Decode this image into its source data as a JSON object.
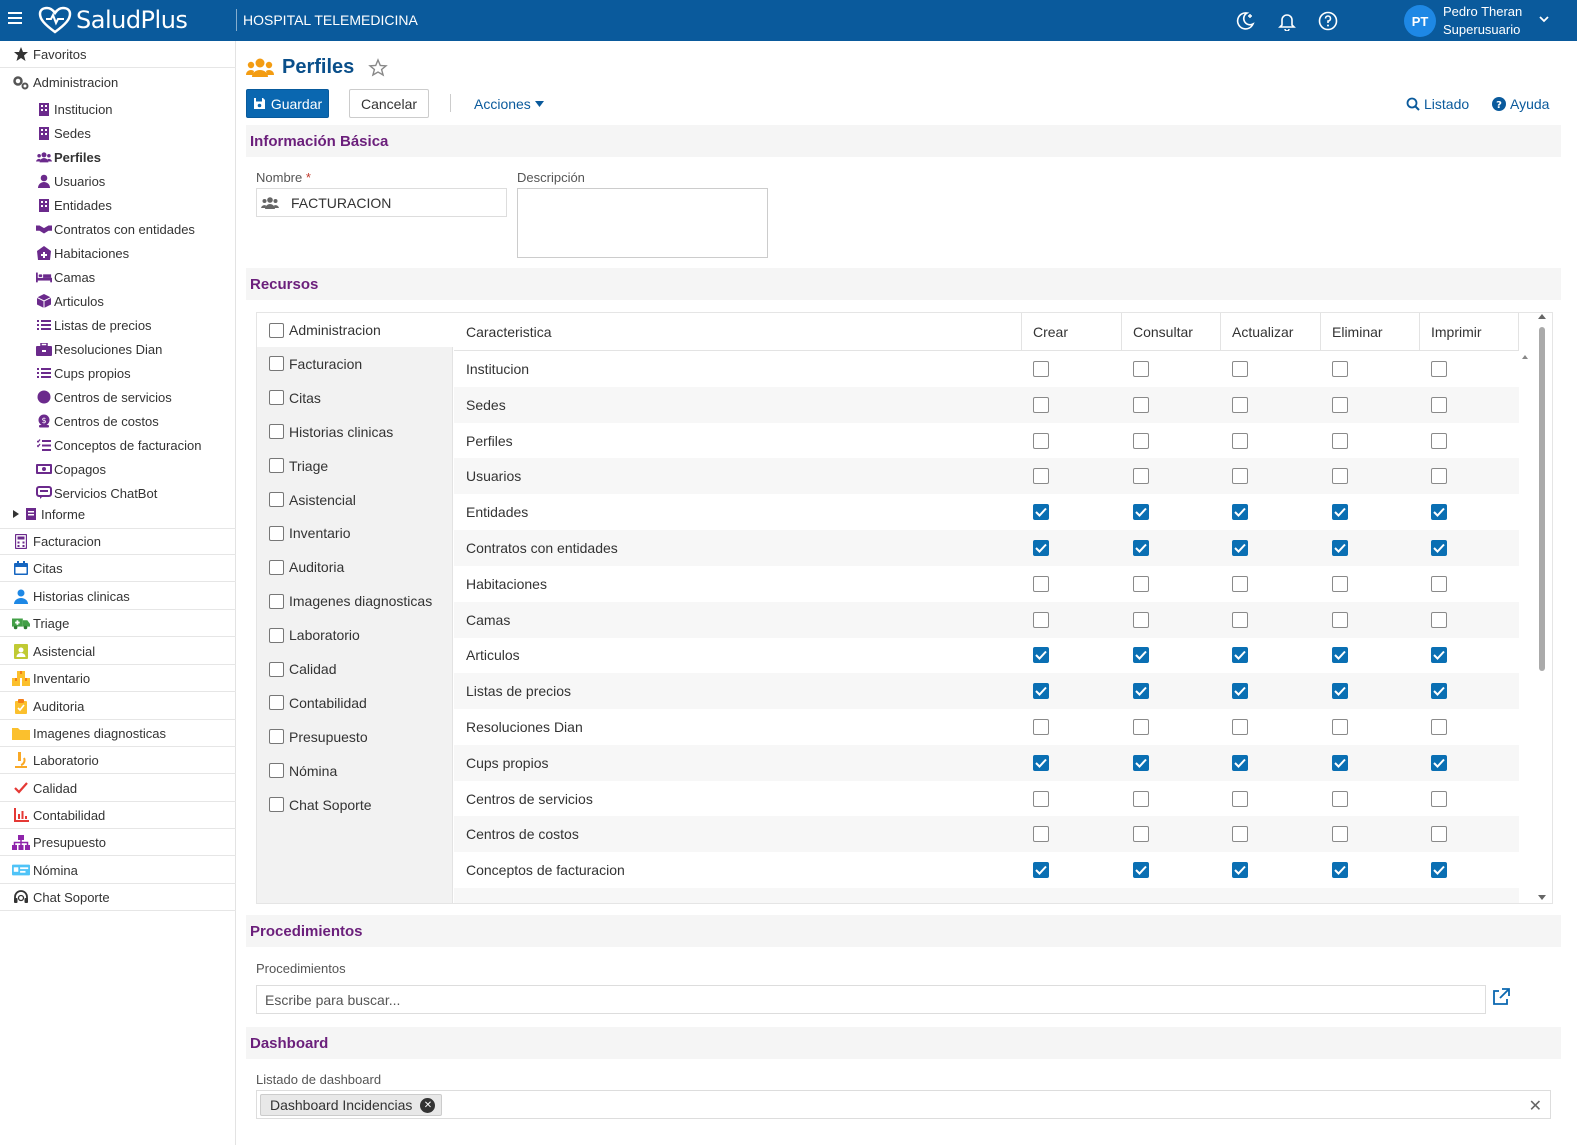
{
  "topbar": {
    "brand": "SaludPlus",
    "hospital": "HOSPITAL TELEMEDICINA",
    "user_initials": "PT",
    "user_name": "Pedro Theran",
    "user_role": "Superusuario",
    "bg_color": "#0a5a9c"
  },
  "sidebar": {
    "favoritos": "Favoritos",
    "administracion": "Administracion",
    "admin_items": [
      {
        "label": "Institucion",
        "icon": "building-icon"
      },
      {
        "label": "Sedes",
        "icon": "building-icon"
      },
      {
        "label": "Perfiles",
        "icon": "users-icon",
        "active": true
      },
      {
        "label": "Usuarios",
        "icon": "user-icon"
      },
      {
        "label": "Entidades",
        "icon": "building-icon"
      },
      {
        "label": "Contratos con entidades",
        "icon": "handshake-icon"
      },
      {
        "label": "Habitaciones",
        "icon": "clinic-icon"
      },
      {
        "label": "Camas",
        "icon": "bed-icon"
      },
      {
        "label": "Articulos",
        "icon": "box-icon"
      },
      {
        "label": "Listas de precios",
        "icon": "list-icon"
      },
      {
        "label": "Resoluciones Dian",
        "icon": "briefcase-icon"
      },
      {
        "label": "Cups propios",
        "icon": "list-icon"
      },
      {
        "label": "Centros de servicios",
        "icon": "circle-icon"
      },
      {
        "label": "Centros de costos",
        "icon": "coin-icon"
      },
      {
        "label": "Conceptos de facturacion",
        "icon": "checklist-icon"
      },
      {
        "label": "Copagos",
        "icon": "money-icon"
      },
      {
        "label": "Servicios ChatBot",
        "icon": "chat-icon"
      }
    ],
    "informe": "Informe",
    "modules": [
      {
        "label": "Facturacion",
        "icon": "calculator-icon"
      },
      {
        "label": "Citas",
        "icon": "calendar-icon"
      },
      {
        "label": "Historias clinicas",
        "icon": "doctor-icon"
      },
      {
        "label": "Triage",
        "icon": "ambulance-icon"
      },
      {
        "label": "Asistencial",
        "icon": "nurse-icon"
      },
      {
        "label": "Inventario",
        "icon": "boxes-icon"
      },
      {
        "label": "Auditoria",
        "icon": "clipboard-icon"
      },
      {
        "label": "Imagenes diagnosticas",
        "icon": "folder-icon"
      },
      {
        "label": "Laboratorio",
        "icon": "microscope-icon"
      },
      {
        "label": "Calidad",
        "icon": "check-icon"
      },
      {
        "label": "Contabilidad",
        "icon": "chart-icon"
      },
      {
        "label": "Presupuesto",
        "icon": "sitemap-icon"
      },
      {
        "label": "Nómina",
        "icon": "payroll-icon"
      },
      {
        "label": "Chat Soporte",
        "icon": "headset-icon"
      }
    ]
  },
  "page": {
    "title": "Perfiles",
    "save": "Guardar",
    "cancel": "Cancelar",
    "actions": "Acciones",
    "list": "Listado",
    "help": "Ayuda"
  },
  "basic": {
    "heading": "Información Básica",
    "name_label": "Nombre",
    "name_required": "*",
    "name_value": "FACTURACION",
    "desc_label": "Descripción",
    "desc_value": ""
  },
  "resources": {
    "heading": "Recursos",
    "modules": [
      "Administracion",
      "Facturacion",
      "Citas",
      "Historias clinicas",
      "Triage",
      "Asistencial",
      "Inventario",
      "Auditoria",
      "Imagenes diagnosticas",
      "Laboratorio",
      "Calidad",
      "Contabilidad",
      "Presupuesto",
      "Nómina",
      "Chat Soporte"
    ],
    "columns": [
      "Caracteristica",
      "Crear",
      "Consultar",
      "Actualizar",
      "Eliminar",
      "Imprimir"
    ],
    "rows": [
      {
        "name": "Institucion",
        "checked": false
      },
      {
        "name": "Sedes",
        "checked": false
      },
      {
        "name": "Perfiles",
        "checked": false
      },
      {
        "name": "Usuarios",
        "checked": false
      },
      {
        "name": "Entidades",
        "checked": true
      },
      {
        "name": "Contratos con entidades",
        "checked": true
      },
      {
        "name": "Habitaciones",
        "checked": false
      },
      {
        "name": "Camas",
        "checked": false
      },
      {
        "name": "Articulos",
        "checked": true
      },
      {
        "name": "Listas de precios",
        "checked": true
      },
      {
        "name": "Resoluciones Dian",
        "checked": false
      },
      {
        "name": "Cups propios",
        "checked": true
      },
      {
        "name": "Centros de servicios",
        "checked": false
      },
      {
        "name": "Centros de costos",
        "checked": false
      },
      {
        "name": "Conceptos de facturacion",
        "checked": true
      }
    ],
    "check_color": "#0a6fb3"
  },
  "procedures": {
    "heading": "Procedimientos",
    "label": "Procedimientos",
    "placeholder": "Escribe para buscar..."
  },
  "dashboard": {
    "heading": "Dashboard",
    "label": "Listado de dashboard",
    "tags": [
      "Dashboard Incidencias"
    ]
  },
  "colors": {
    "section_heading": "#6b1f7b",
    "link": "#0a5a9c",
    "primary_button": "#0a67b0"
  }
}
